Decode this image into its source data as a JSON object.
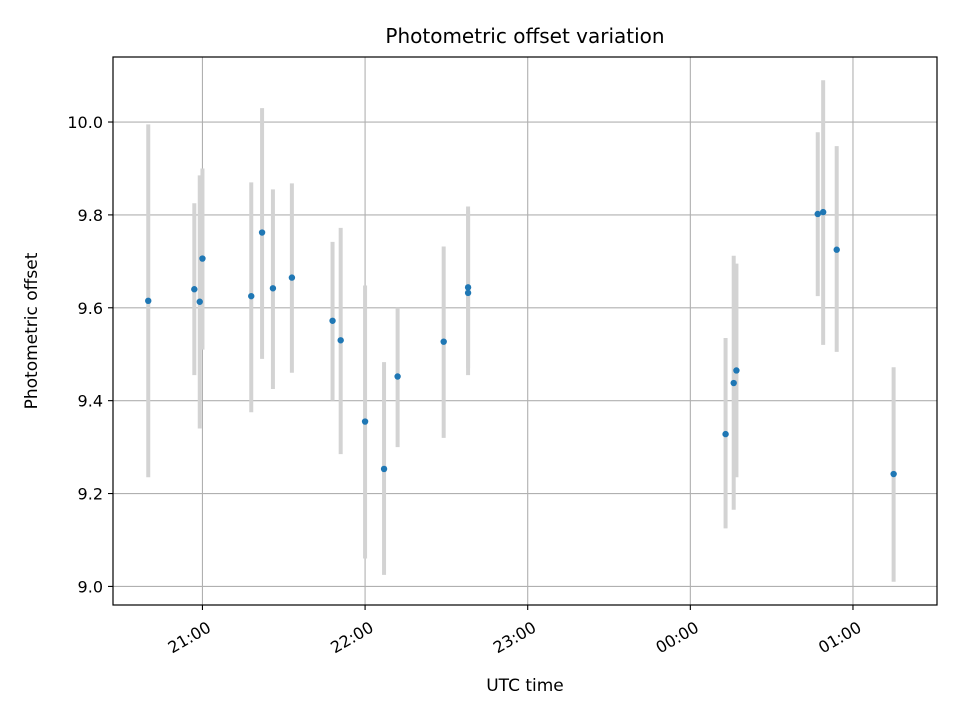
{
  "chart_data": {
    "type": "scatter",
    "title": "Photometric offset variation",
    "xlabel": "UTC time",
    "ylabel": "Photometric offset",
    "xlim": [
      "20:27",
      "01:31"
    ],
    "ylim": [
      8.96,
      10.14
    ],
    "yticks": [
      "9.0",
      "9.2",
      "9.4",
      "9.6",
      "9.8",
      "10.0"
    ],
    "xticks": [
      "21:00",
      "22:00",
      "23:00",
      "00:00",
      "01:00"
    ],
    "grid": true,
    "colors": {
      "points": "#1f77b4",
      "errorbars": "#d3d3d3",
      "grid": "#b0b0b0"
    },
    "points": [
      {
        "x": "20:40",
        "y": 9.615,
        "low": 9.235,
        "high": 9.995
      },
      {
        "x": "20:57",
        "y": 9.64,
        "low": 9.455,
        "high": 9.825
      },
      {
        "x": "20:59",
        "y": 9.613,
        "low": 9.34,
        "high": 9.885
      },
      {
        "x": "21:00",
        "y": 9.706,
        "low": 9.51,
        "high": 9.9
      },
      {
        "x": "21:18",
        "y": 9.625,
        "low": 9.375,
        "high": 9.87
      },
      {
        "x": "21:22",
        "y": 9.762,
        "low": 9.49,
        "high": 10.03
      },
      {
        "x": "21:26",
        "y": 9.642,
        "low": 9.425,
        "high": 9.855
      },
      {
        "x": "21:33",
        "y": 9.665,
        "low": 9.46,
        "high": 9.868
      },
      {
        "x": "21:48",
        "y": 9.572,
        "low": 9.4,
        "high": 9.742
      },
      {
        "x": "21:51",
        "y": 9.53,
        "low": 9.285,
        "high": 9.772
      },
      {
        "x": "22:00",
        "y": 9.355,
        "low": 9.06,
        "high": 9.648
      },
      {
        "x": "22:07",
        "y": 9.253,
        "low": 9.025,
        "high": 9.483
      },
      {
        "x": "22:12",
        "y": 9.452,
        "low": 9.3,
        "high": 9.6
      },
      {
        "x": "22:29",
        "y": 9.527,
        "low": 9.32,
        "high": 9.732
      },
      {
        "x": "22:38",
        "y": 9.632,
        "low": 9.455,
        "high": 9.808
      },
      {
        "x": "22:38",
        "y": 9.644,
        "low": 9.47,
        "high": 9.818
      },
      {
        "x": "00:13",
        "y": 9.328,
        "low": 9.125,
        "high": 9.535
      },
      {
        "x": "00:16",
        "y": 9.438,
        "low": 9.165,
        "high": 9.712
      },
      {
        "x": "00:17",
        "y": 9.465,
        "low": 9.235,
        "high": 9.695
      },
      {
        "x": "00:47",
        "y": 9.802,
        "low": 9.625,
        "high": 9.978
      },
      {
        "x": "00:49",
        "y": 9.806,
        "low": 9.52,
        "high": 10.09
      },
      {
        "x": "00:54",
        "y": 9.725,
        "low": 9.505,
        "high": 9.948
      },
      {
        "x": "01:15",
        "y": 9.242,
        "low": 9.01,
        "high": 9.472
      }
    ]
  }
}
